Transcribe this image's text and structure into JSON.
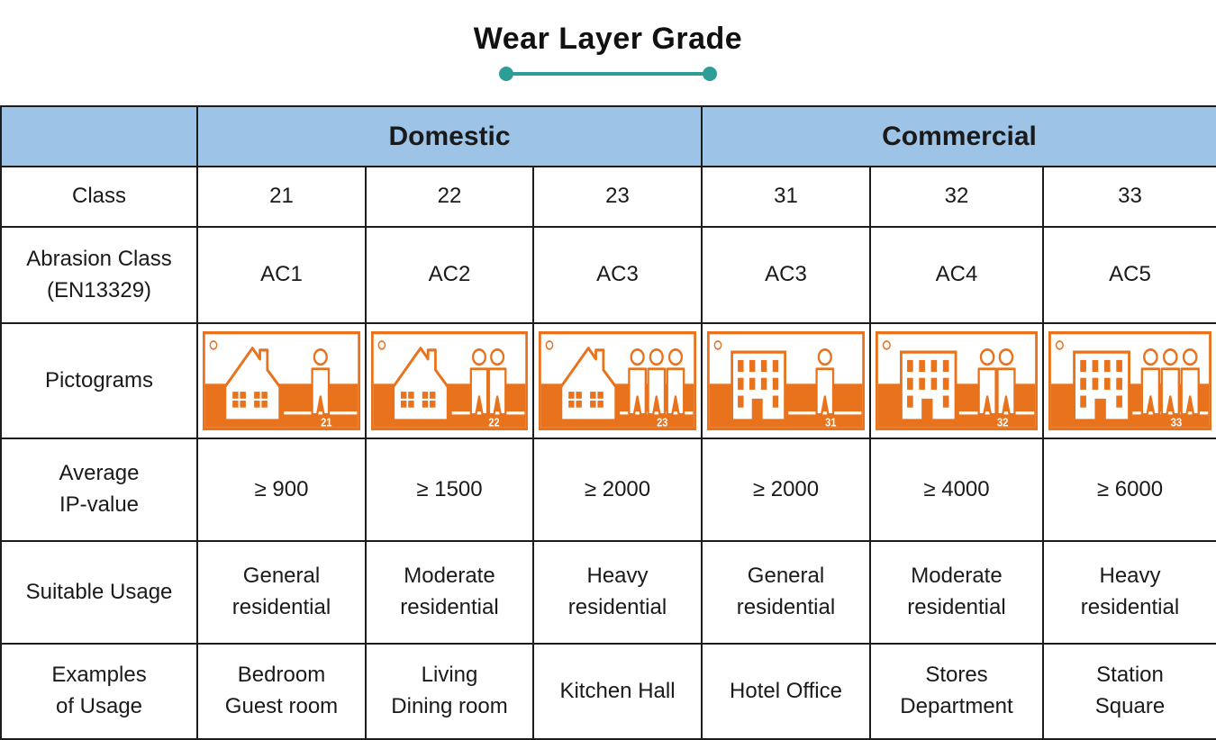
{
  "title": "Wear Layer Grade",
  "colors": {
    "accent_teal": "#2e9d95",
    "header_blue": "#9dc3e6",
    "pictogram_orange": "#e8731c",
    "border_black": "#1c1c1c"
  },
  "table": {
    "group_headers": [
      {
        "label": "",
        "span": 1
      },
      {
        "label": "Domestic",
        "span": 3
      },
      {
        "label": "Commercial",
        "span": 3
      }
    ],
    "rows": [
      {
        "label": "Class",
        "cells": [
          "21",
          "22",
          "23",
          "31",
          "32",
          "33"
        ]
      },
      {
        "label": "Abrasion Class\n(EN13329)",
        "cells": [
          "AC1",
          "AC2",
          "AC3",
          "AC3",
          "AC4",
          "AC5"
        ]
      },
      {
        "label": "Pictograms"
      },
      {
        "label": "Average\nIP-value",
        "cells": [
          "≥ 900",
          "≥ 1500",
          "≥ 2000",
          "≥ 2000",
          "≥ 4000",
          "≥ 6000"
        ]
      },
      {
        "label": "Suitable Usage",
        "cells": [
          "General\nresidential",
          "Moderate\nresidential",
          "Heavy\nresidential",
          "General\nresidential",
          "Moderate\nresidential",
          "Heavy\nresidential"
        ]
      },
      {
        "label": "Examples\nof Usage",
        "cells": [
          "Bedroom\nGuest room",
          "Living\nDining room",
          "Kitchen Hall",
          "Hotel Office",
          "Stores\nDepartment",
          "Station\nSquare"
        ]
      }
    ],
    "pictograms": [
      {
        "icon": "house-icon",
        "persons": 1,
        "class_label": "21"
      },
      {
        "icon": "house-icon",
        "persons": 2,
        "class_label": "22"
      },
      {
        "icon": "house-icon",
        "persons": 3,
        "class_label": "23"
      },
      {
        "icon": "building-icon",
        "persons": 1,
        "class_label": "31"
      },
      {
        "icon": "building-icon",
        "persons": 2,
        "class_label": "32"
      },
      {
        "icon": "building-icon",
        "persons": 3,
        "class_label": "33"
      }
    ]
  }
}
